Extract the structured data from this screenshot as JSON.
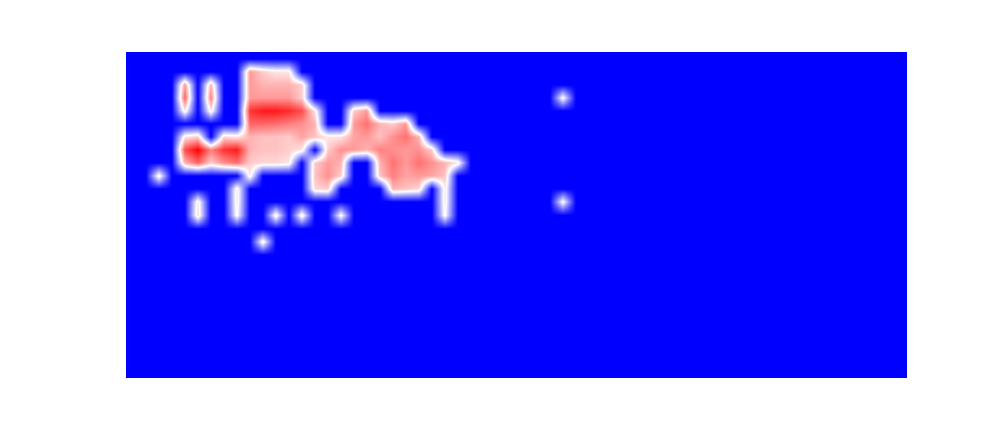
{
  "chart_data": {
    "type": "heatmap",
    "zlim": [
      0,
      100
    ],
    "tick_labels": false,
    "grid": false,
    "z": [
      [
        0,
        0,
        0,
        0,
        0,
        0,
        0,
        0,
        0,
        0,
        0,
        0,
        0,
        0,
        0,
        0,
        0,
        0,
        0,
        0,
        0,
        0,
        0,
        0,
        0,
        0,
        0,
        0,
        0,
        0,
        0,
        0,
        0,
        0,
        0,
        0,
        0,
        0,
        0,
        0,
        0,
        0,
        0,
        0,
        0,
        0,
        0,
        0,
        0,
        0,
        0,
        0,
        0,
        0,
        0,
        0,
        0,
        0,
        0,
        0
      ],
      [
        0,
        0,
        0,
        0,
        0,
        0,
        0,
        0,
        0,
        70,
        60,
        55,
        55,
        0,
        0,
        0,
        0,
        0,
        0,
        0,
        0,
        0,
        0,
        0,
        0,
        0,
        0,
        0,
        0,
        0,
        0,
        0,
        0,
        0,
        0,
        0,
        0,
        0,
        0,
        0,
        0,
        0,
        0,
        0,
        0,
        0,
        0,
        0,
        0,
        0,
        0,
        0,
        0,
        0,
        0,
        0,
        0,
        0,
        0,
        0
      ],
      [
        0,
        0,
        0,
        0,
        70,
        0,
        65,
        0,
        0,
        70,
        65,
        65,
        65,
        60,
        0,
        0,
        0,
        0,
        0,
        0,
        0,
        0,
        0,
        0,
        0,
        0,
        0,
        0,
        0,
        0,
        0,
        0,
        0,
        0,
        0,
        0,
        0,
        0,
        0,
        0,
        0,
        0,
        0,
        0,
        0,
        0,
        0,
        0,
        0,
        0,
        0,
        0,
        0,
        0,
        0,
        0,
        0,
        0,
        0,
        0
      ],
      [
        0,
        0,
        0,
        0,
        80,
        0,
        75,
        0,
        0,
        70,
        70,
        70,
        70,
        60,
        0,
        0,
        0,
        0,
        0,
        0,
        0,
        0,
        0,
        0,
        0,
        0,
        0,
        0,
        0,
        0,
        0,
        0,
        0,
        52,
        0,
        0,
        0,
        0,
        0,
        0,
        0,
        0,
        0,
        0,
        0,
        0,
        0,
        0,
        0,
        0,
        0,
        0,
        0,
        0,
        0,
        0,
        0,
        0,
        0,
        0
      ],
      [
        0,
        0,
        0,
        0,
        55,
        0,
        55,
        0,
        0,
        90,
        95,
        95,
        92,
        85,
        55,
        0,
        0,
        60,
        70,
        0,
        0,
        0,
        0,
        0,
        0,
        0,
        0,
        0,
        0,
        0,
        0,
        0,
        0,
        0,
        0,
        0,
        0,
        0,
        0,
        0,
        0,
        0,
        0,
        0,
        0,
        0,
        0,
        0,
        0,
        0,
        0,
        0,
        0,
        0,
        0,
        0,
        0,
        0,
        0,
        0
      ],
      [
        0,
        0,
        0,
        0,
        0,
        0,
        0,
        0,
        0,
        80,
        80,
        78,
        75,
        72,
        65,
        0,
        0,
        70,
        78,
        65,
        60,
        70,
        0,
        0,
        0,
        0,
        0,
        0,
        0,
        0,
        0,
        0,
        0,
        0,
        0,
        0,
        0,
        0,
        0,
        0,
        0,
        0,
        0,
        0,
        0,
        0,
        0,
        0,
        0,
        0,
        0,
        0,
        0,
        0,
        0,
        0,
        0,
        0,
        0,
        0
      ],
      [
        0,
        0,
        0,
        0,
        55,
        60,
        0,
        58,
        55,
        65,
        62,
        62,
        60,
        68,
        62,
        55,
        55,
        68,
        70,
        62,
        72,
        78,
        65,
        0,
        0,
        0,
        0,
        0,
        0,
        0,
        0,
        0,
        0,
        0,
        0,
        0,
        0,
        0,
        0,
        0,
        0,
        0,
        0,
        0,
        0,
        0,
        0,
        0,
        0,
        0,
        0,
        0,
        0,
        0,
        0,
        0,
        0,
        0,
        0,
        0
      ],
      [
        0,
        0,
        0,
        0,
        85,
        100,
        75,
        90,
        95,
        65,
        62,
        62,
        60,
        55,
        0,
        60,
        72,
        70,
        65,
        75,
        72,
        70,
        72,
        60,
        0,
        0,
        0,
        0,
        0,
        0,
        0,
        0,
        0,
        0,
        0,
        0,
        0,
        0,
        0,
        0,
        0,
        0,
        0,
        0,
        0,
        0,
        0,
        0,
        0,
        0,
        0,
        0,
        0,
        0,
        0,
        0,
        0,
        0,
        0,
        0
      ],
      [
        0,
        0,
        0,
        0,
        65,
        80,
        60,
        72,
        78,
        60,
        58,
        58,
        55,
        0,
        60,
        70,
        65,
        0,
        0,
        65,
        78,
        70,
        78,
        72,
        65,
        55,
        0,
        0,
        0,
        0,
        0,
        0,
        0,
        0,
        0,
        0,
        0,
        0,
        0,
        0,
        0,
        0,
        0,
        0,
        0,
        0,
        0,
        0,
        0,
        0,
        0,
        0,
        0,
        0,
        0,
        0,
        0,
        0,
        0,
        0
      ],
      [
        0,
        0,
        55,
        0,
        0,
        0,
        0,
        0,
        0,
        55,
        0,
        0,
        0,
        0,
        62,
        72,
        60,
        0,
        0,
        62,
        75,
        68,
        70,
        68,
        62,
        0,
        0,
        0,
        0,
        0,
        0,
        0,
        0,
        0,
        0,
        0,
        0,
        0,
        0,
        0,
        0,
        0,
        0,
        0,
        0,
        0,
        0,
        0,
        0,
        0,
        0,
        0,
        0,
        0,
        0,
        0,
        0,
        0,
        0,
        0
      ],
      [
        0,
        0,
        0,
        0,
        0,
        0,
        0,
        0,
        55,
        0,
        0,
        0,
        0,
        0,
        58,
        60,
        0,
        0,
        0,
        0,
        65,
        62,
        58,
        0,
        55,
        0,
        0,
        0,
        0,
        0,
        0,
        0,
        0,
        0,
        0,
        0,
        0,
        0,
        0,
        0,
        0,
        0,
        0,
        0,
        0,
        0,
        0,
        0,
        0,
        0,
        0,
        0,
        0,
        0,
        0,
        0,
        0,
        0,
        0,
        0
      ],
      [
        0,
        0,
        0,
        0,
        0,
        55,
        0,
        0,
        55,
        0,
        0,
        0,
        0,
        0,
        0,
        0,
        0,
        0,
        0,
        0,
        0,
        0,
        0,
        0,
        55,
        0,
        0,
        0,
        0,
        0,
        0,
        0,
        0,
        52,
        0,
        0,
        0,
        0,
        0,
        0,
        0,
        0,
        0,
        0,
        0,
        0,
        0,
        0,
        0,
        0,
        0,
        0,
        0,
        0,
        0,
        0,
        0,
        0,
        0,
        0
      ],
      [
        0,
        0,
        0,
        0,
        0,
        58,
        0,
        0,
        52,
        0,
        0,
        55,
        0,
        55,
        0,
        0,
        52,
        0,
        0,
        0,
        0,
        0,
        0,
        0,
        52,
        0,
        0,
        0,
        0,
        0,
        0,
        0,
        0,
        0,
        0,
        0,
        0,
        0,
        0,
        0,
        0,
        0,
        0,
        0,
        0,
        0,
        0,
        0,
        0,
        0,
        0,
        0,
        0,
        0,
        0,
        0,
        0,
        0,
        0,
        0
      ],
      [
        0,
        0,
        0,
        0,
        0,
        0,
        0,
        0,
        0,
        0,
        0,
        0,
        0,
        0,
        0,
        0,
        0,
        0,
        0,
        0,
        0,
        0,
        0,
        0,
        0,
        0,
        0,
        0,
        0,
        0,
        0,
        0,
        0,
        0,
        0,
        0,
        0,
        0,
        0,
        0,
        0,
        0,
        0,
        0,
        0,
        0,
        0,
        0,
        0,
        0,
        0,
        0,
        0,
        0,
        0,
        0,
        0,
        0,
        0,
        0
      ],
      [
        0,
        0,
        0,
        0,
        0,
        0,
        0,
        0,
        0,
        0,
        55,
        0,
        0,
        0,
        0,
        0,
        0,
        0,
        0,
        0,
        0,
        0,
        0,
        0,
        0,
        0,
        0,
        0,
        0,
        0,
        0,
        0,
        0,
        0,
        0,
        0,
        0,
        0,
        0,
        0,
        0,
        0,
        0,
        0,
        0,
        0,
        0,
        0,
        0,
        0,
        0,
        0,
        0,
        0,
        0,
        0,
        0,
        0,
        0,
        0
      ],
      [
        0,
        0,
        0,
        0,
        0,
        0,
        0,
        0,
        0,
        0,
        0,
        0,
        0,
        0,
        0,
        0,
        0,
        0,
        0,
        0,
        0,
        0,
        0,
        0,
        0,
        0,
        0,
        0,
        0,
        0,
        0,
        0,
        0,
        0,
        0,
        0,
        0,
        0,
        0,
        0,
        0,
        0,
        0,
        0,
        0,
        0,
        0,
        0,
        0,
        0,
        0,
        0,
        0,
        0,
        0,
        0,
        0,
        0,
        0,
        0
      ],
      [
        0,
        0,
        0,
        0,
        0,
        0,
        0,
        0,
        0,
        0,
        0,
        0,
        0,
        0,
        0,
        0,
        0,
        0,
        0,
        0,
        0,
        0,
        0,
        0,
        0,
        0,
        0,
        0,
        0,
        0,
        0,
        0,
        0,
        0,
        0,
        0,
        0,
        0,
        0,
        0,
        0,
        0,
        0,
        0,
        0,
        0,
        0,
        0,
        0,
        0,
        0,
        0,
        0,
        0,
        0,
        0,
        0,
        0,
        0,
        0
      ],
      [
        0,
        0,
        0,
        0,
        0,
        0,
        0,
        0,
        0,
        0,
        0,
        0,
        0,
        0,
        0,
        0,
        0,
        0,
        0,
        0,
        0,
        0,
        0,
        0,
        0,
        0,
        0,
        0,
        0,
        0,
        0,
        0,
        0,
        0,
        0,
        0,
        0,
        0,
        0,
        0,
        0,
        0,
        0,
        0,
        0,
        0,
        0,
        0,
        0,
        0,
        0,
        0,
        0,
        0,
        0,
        0,
        0,
        0,
        0,
        0
      ],
      [
        0,
        0,
        0,
        0,
        0,
        0,
        0,
        0,
        0,
        0,
        0,
        0,
        0,
        0,
        0,
        0,
        0,
        0,
        0,
        0,
        0,
        0,
        0,
        0,
        0,
        0,
        0,
        0,
        0,
        0,
        0,
        0,
        0,
        0,
        0,
        0,
        0,
        0,
        0,
        0,
        0,
        0,
        0,
        0,
        0,
        0,
        0,
        0,
        0,
        0,
        0,
        0,
        0,
        0,
        0,
        0,
        0,
        0,
        0,
        0
      ],
      [
        0,
        0,
        0,
        0,
        0,
        0,
        0,
        0,
        0,
        0,
        0,
        0,
        0,
        0,
        0,
        0,
        0,
        0,
        0,
        0,
        0,
        0,
        0,
        0,
        0,
        0,
        0,
        0,
        0,
        0,
        0,
        0,
        0,
        0,
        0,
        0,
        0,
        0,
        0,
        0,
        0,
        0,
        0,
        0,
        0,
        0,
        0,
        0,
        0,
        0,
        0,
        0,
        0,
        0,
        0,
        0,
        0,
        0,
        0,
        0
      ],
      [
        0,
        0,
        0,
        0,
        0,
        0,
        0,
        0,
        0,
        0,
        0,
        0,
        0,
        0,
        0,
        0,
        0,
        0,
        0,
        0,
        0,
        0,
        0,
        0,
        0,
        0,
        0,
        0,
        0,
        0,
        0,
        0,
        0,
        0,
        0,
        0,
        0,
        0,
        0,
        0,
        0,
        0,
        0,
        0,
        0,
        0,
        0,
        0,
        0,
        0,
        0,
        0,
        0,
        0,
        0,
        0,
        0,
        0,
        0,
        0
      ],
      [
        0,
        0,
        0,
        0,
        0,
        0,
        0,
        0,
        0,
        0,
        0,
        0,
        0,
        0,
        0,
        0,
        0,
        0,
        0,
        0,
        0,
        0,
        0,
        0,
        0,
        0,
        0,
        0,
        0,
        0,
        0,
        0,
        0,
        0,
        0,
        0,
        0,
        0,
        0,
        0,
        0,
        0,
        0,
        0,
        0,
        0,
        0,
        0,
        0,
        0,
        0,
        0,
        0,
        0,
        0,
        0,
        0,
        0,
        0,
        0
      ],
      [
        0,
        0,
        0,
        0,
        0,
        0,
        0,
        0,
        0,
        0,
        0,
        0,
        0,
        0,
        0,
        0,
        0,
        0,
        0,
        0,
        0,
        0,
        0,
        0,
        0,
        0,
        0,
        0,
        0,
        0,
        0,
        0,
        0,
        0,
        0,
        0,
        0,
        0,
        0,
        0,
        0,
        0,
        0,
        0,
        0,
        0,
        0,
        0,
        0,
        0,
        0,
        0,
        0,
        0,
        0,
        0,
        0,
        0,
        0,
        0
      ],
      [
        0,
        0,
        0,
        0,
        0,
        0,
        0,
        0,
        0,
        0,
        0,
        0,
        0,
        0,
        0,
        0,
        0,
        0,
        0,
        0,
        0,
        0,
        0,
        0,
        0,
        0,
        0,
        0,
        0,
        0,
        0,
        0,
        0,
        0,
        0,
        0,
        0,
        0,
        0,
        0,
        0,
        0,
        0,
        0,
        0,
        0,
        0,
        0,
        0,
        0,
        0,
        0,
        0,
        0,
        0,
        0,
        0,
        0,
        0,
        0
      ],
      [
        0,
        0,
        0,
        0,
        0,
        0,
        0,
        0,
        0,
        0,
        0,
        0,
        0,
        0,
        0,
        0,
        0,
        0,
        0,
        0,
        0,
        0,
        0,
        0,
        0,
        0,
        0,
        0,
        0,
        0,
        0,
        0,
        0,
        0,
        0,
        0,
        0,
        0,
        0,
        0,
        0,
        0,
        0,
        0,
        0,
        0,
        0,
        0,
        0,
        0,
        0,
        0,
        0,
        0,
        0,
        0,
        0,
        0,
        0,
        0
      ]
    ]
  }
}
